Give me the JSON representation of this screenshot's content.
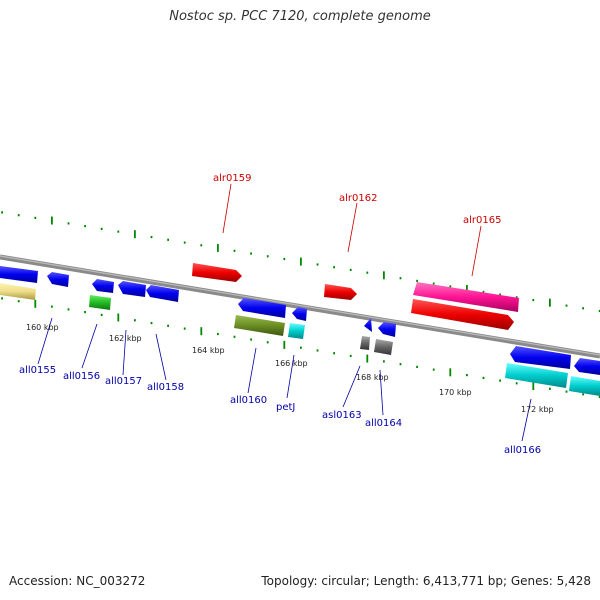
{
  "title": "Nostoc sp. PCC 7120, complete genome",
  "footer": {
    "accession": "Accession: NC_003272",
    "stats": "Topology: circular; Length: 6,413,771 bp; Genes: 5,428"
  },
  "colors": {
    "forward_label": "#cc0000",
    "reverse_label": "#0000aa",
    "ticks": "#008800",
    "backbone": "#888888"
  },
  "scale_labels": [
    "160 kbp",
    "162 kbp",
    "164 kbp",
    "166 kbp",
    "168 kbp",
    "170 kbp",
    "172 kbp"
  ],
  "forward_genes": [
    {
      "name": "alr0159",
      "color": "#ff0000"
    },
    {
      "name": "alr0162",
      "color": "#ff0000"
    },
    {
      "name": "alr0165",
      "color": "#ff1493"
    }
  ],
  "reverse_genes": [
    {
      "name": "all0155",
      "color": "#0000ff"
    },
    {
      "name": "all0156",
      "color": "#0000ff"
    },
    {
      "name": "all0157",
      "color": "#0000ff"
    },
    {
      "name": "all0158",
      "color": "#0000ff"
    },
    {
      "name": "all0160",
      "color": "#0000ff"
    },
    {
      "name": "petJ",
      "color": "#0000ff"
    },
    {
      "name": "asl0163",
      "color": "#0000ff"
    },
    {
      "name": "all0164",
      "color": "#555555"
    },
    {
      "name": "all0166",
      "color": "#0000ff"
    }
  ]
}
